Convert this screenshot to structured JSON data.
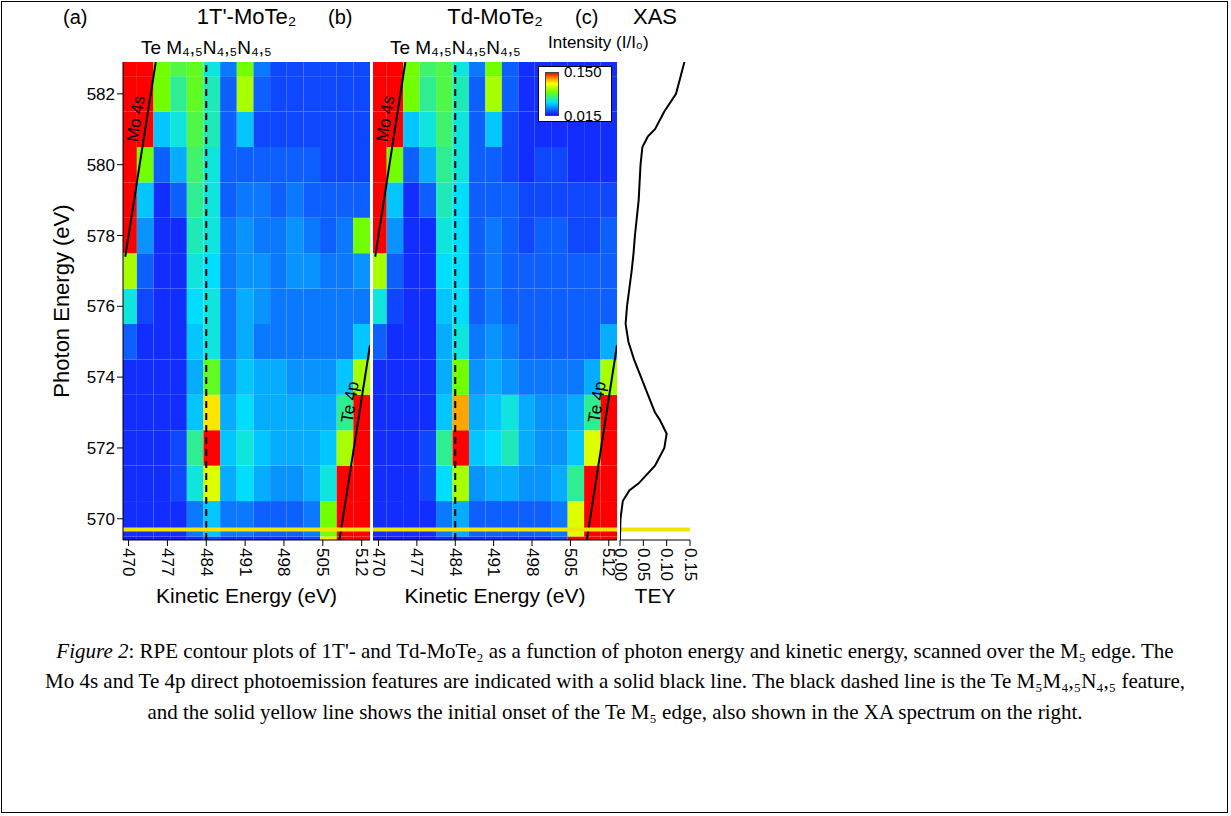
{
  "chart_data": [
    {
      "type": "heatmap",
      "panel": "(a)",
      "title": "1T'-MoTe₂",
      "x_label": "Kinetic Energy (eV)",
      "y_label": "Photon Energy (eV)",
      "x": [
        470,
        473,
        476,
        479,
        482,
        485,
        488,
        491,
        494,
        497,
        500,
        503,
        506,
        509,
        512
      ],
      "y": [
        569,
        570,
        571,
        572,
        573,
        574,
        575,
        576,
        577,
        578,
        579,
        580,
        581,
        582,
        583
      ],
      "cells": [
        [
          0.015,
          0.015,
          0.015,
          0.015,
          0.02,
          0.025,
          0.02,
          0.02,
          0.02,
          0.02,
          0.02,
          0.025,
          0.12,
          0.17,
          0.17
        ],
        [
          0.02,
          0.02,
          0.02,
          0.02,
          0.035,
          0.05,
          0.035,
          0.035,
          0.03,
          0.03,
          0.03,
          0.035,
          0.09,
          0.17,
          0.17
        ],
        [
          0.02,
          0.02,
          0.02,
          0.025,
          0.06,
          0.11,
          0.045,
          0.055,
          0.045,
          0.04,
          0.04,
          0.045,
          0.06,
          0.16,
          0.17
        ],
        [
          0.02,
          0.02,
          0.02,
          0.025,
          0.07,
          0.16,
          0.05,
          0.06,
          0.05,
          0.045,
          0.045,
          0.045,
          0.05,
          0.1,
          0.17
        ],
        [
          0.02,
          0.02,
          0.02,
          0.02,
          0.05,
          0.12,
          0.045,
          0.055,
          0.045,
          0.045,
          0.045,
          0.045,
          0.045,
          0.07,
          0.17
        ],
        [
          0.02,
          0.02,
          0.02,
          0.02,
          0.045,
          0.085,
          0.04,
          0.05,
          0.045,
          0.045,
          0.04,
          0.04,
          0.04,
          0.05,
          0.1
        ],
        [
          0.03,
          0.02,
          0.02,
          0.02,
          0.05,
          0.06,
          0.035,
          0.045,
          0.035,
          0.035,
          0.035,
          0.035,
          0.035,
          0.035,
          0.05
        ],
        [
          0.06,
          0.025,
          0.02,
          0.02,
          0.055,
          0.06,
          0.035,
          0.045,
          0.04,
          0.035,
          0.035,
          0.035,
          0.035,
          0.035,
          0.035
        ],
        [
          0.1,
          0.03,
          0.02,
          0.02,
          0.06,
          0.055,
          0.035,
          0.04,
          0.04,
          0.035,
          0.04,
          0.04,
          0.035,
          0.035,
          0.04
        ],
        [
          0.15,
          0.04,
          0.02,
          0.02,
          0.065,
          0.06,
          0.035,
          0.04,
          0.035,
          0.035,
          0.04,
          0.035,
          0.03,
          0.035,
          0.09
        ],
        [
          0.16,
          0.05,
          0.02,
          0.03,
          0.07,
          0.06,
          0.03,
          0.035,
          0.035,
          0.03,
          0.035,
          0.03,
          0.03,
          0.03,
          0.03
        ],
        [
          0.17,
          0.09,
          0.03,
          0.045,
          0.075,
          0.06,
          0.03,
          0.03,
          0.03,
          0.03,
          0.03,
          0.03,
          0.025,
          0.025,
          0.025
        ],
        [
          0.17,
          0.15,
          0.05,
          0.06,
          0.08,
          0.065,
          0.03,
          0.05,
          0.025,
          0.025,
          0.025,
          0.025,
          0.025,
          0.025,
          0.025
        ],
        [
          0.17,
          0.17,
          0.09,
          0.07,
          0.085,
          0.065,
          0.03,
          0.1,
          0.03,
          0.025,
          0.025,
          0.025,
          0.025,
          0.025,
          0.025
        ],
        [
          0.17,
          0.17,
          0.09,
          0.08,
          0.085,
          0.06,
          0.035,
          0.09,
          0.035,
          0.025,
          0.025,
          0.025,
          0.025,
          0.025,
          0.025
        ]
      ],
      "xlim": [
        469,
        513.5
      ],
      "xticks": [
        470,
        477,
        484,
        491,
        498,
        505,
        512
      ],
      "ylim": [
        569.4,
        582.9
      ],
      "yticks": [
        570,
        572,
        574,
        576,
        578,
        580,
        582
      ],
      "annotations": [
        {
          "text": "Mo 4s",
          "x": [
            469.4,
            474.9
          ],
          "y": [
            577.4,
            582.9
          ]
        },
        {
          "text": "Te 4p",
          "x": [
            508,
            513.5
          ],
          "y": [
            569.4,
            574.9
          ]
        }
      ],
      "feature": {
        "label": "Te M₄,₅N₄,₅N₄,₅",
        "x": 484
      },
      "onset": 569.7
    },
    {
      "type": "heatmap",
      "panel": "(b)",
      "title": "Td-MoTe₂",
      "x_label": "Kinetic Energy (eV)",
      "tick_labels": "x",
      "x": [
        470,
        473,
        476,
        479,
        482,
        485,
        488,
        491,
        494,
        497,
        500,
        503,
        506,
        509,
        512
      ],
      "y": [
        569,
        570,
        571,
        572,
        573,
        574,
        575,
        576,
        577,
        578,
        579,
        580,
        581,
        582,
        583
      ],
      "cells": [
        [
          0.015,
          0.015,
          0.015,
          0.015,
          0.02,
          0.02,
          0.02,
          0.02,
          0.02,
          0.02,
          0.02,
          0.025,
          0.15,
          0.17,
          0.17
        ],
        [
          0.02,
          0.02,
          0.02,
          0.02,
          0.035,
          0.045,
          0.03,
          0.03,
          0.03,
          0.03,
          0.03,
          0.035,
          0.11,
          0.17,
          0.17
        ],
        [
          0.02,
          0.02,
          0.02,
          0.025,
          0.055,
          0.1,
          0.04,
          0.045,
          0.045,
          0.04,
          0.04,
          0.045,
          0.07,
          0.17,
          0.17
        ],
        [
          0.02,
          0.02,
          0.02,
          0.025,
          0.07,
          0.17,
          0.05,
          0.055,
          0.065,
          0.045,
          0.04,
          0.04,
          0.05,
          0.11,
          0.17
        ],
        [
          0.02,
          0.02,
          0.02,
          0.02,
          0.05,
          0.13,
          0.045,
          0.05,
          0.06,
          0.045,
          0.04,
          0.04,
          0.045,
          0.07,
          0.17
        ],
        [
          0.02,
          0.02,
          0.02,
          0.02,
          0.045,
          0.09,
          0.04,
          0.045,
          0.04,
          0.035,
          0.035,
          0.035,
          0.035,
          0.045,
          0.1
        ],
        [
          0.03,
          0.02,
          0.02,
          0.02,
          0.045,
          0.06,
          0.035,
          0.04,
          0.035,
          0.03,
          0.03,
          0.03,
          0.03,
          0.03,
          0.045
        ],
        [
          0.06,
          0.025,
          0.02,
          0.02,
          0.05,
          0.055,
          0.03,
          0.035,
          0.03,
          0.03,
          0.03,
          0.03,
          0.03,
          0.03,
          0.03
        ],
        [
          0.1,
          0.03,
          0.02,
          0.02,
          0.055,
          0.055,
          0.03,
          0.035,
          0.03,
          0.03,
          0.03,
          0.03,
          0.03,
          0.03,
          0.03
        ],
        [
          0.15,
          0.04,
          0.02,
          0.02,
          0.06,
          0.055,
          0.03,
          0.035,
          0.03,
          0.025,
          0.03,
          0.03,
          0.025,
          0.025,
          0.03
        ],
        [
          0.16,
          0.05,
          0.02,
          0.03,
          0.065,
          0.055,
          0.03,
          0.03,
          0.03,
          0.025,
          0.025,
          0.025,
          0.025,
          0.025,
          0.025
        ],
        [
          0.17,
          0.09,
          0.03,
          0.045,
          0.07,
          0.06,
          0.03,
          0.03,
          0.025,
          0.02,
          0.025,
          0.025,
          0.02,
          0.02,
          0.02
        ],
        [
          0.17,
          0.15,
          0.05,
          0.06,
          0.075,
          0.06,
          0.03,
          0.05,
          0.025,
          0.02,
          0.02,
          0.02,
          0.02,
          0.02,
          0.02
        ],
        [
          0.17,
          0.17,
          0.09,
          0.07,
          0.08,
          0.065,
          0.03,
          0.1,
          0.03,
          0.02,
          0.02,
          0.02,
          0.02,
          0.02,
          0.02
        ],
        [
          0.17,
          0.17,
          0.09,
          0.075,
          0.08,
          0.06,
          0.035,
          0.09,
          0.03,
          0.02,
          0.02,
          0.02,
          0.02,
          0.02,
          0.02
        ]
      ],
      "xlim": [
        469,
        513.5
      ],
      "xticks": [
        470,
        477,
        484,
        491,
        498,
        505,
        512
      ],
      "ylim": [
        569.4,
        582.9
      ],
      "annotations": [
        {
          "text": "Mo 4s",
          "x": [
            469.4,
            474.9
          ],
          "y": [
            577.4,
            582.9
          ]
        },
        {
          "text": "Te 4p",
          "x": [
            508,
            513.5
          ],
          "y": [
            569.4,
            574.9
          ]
        }
      ],
      "feature": {
        "label": "Te M₄,₅N₄,₅N₄,₅",
        "x": 484
      },
      "onset": 569.7,
      "colorbar": {
        "label": "Intensity (I/I₀)",
        "range": [
          0.015,
          0.15
        ],
        "ticks": [
          {
            "value": 0.15,
            "label": "0.150"
          },
          0.015
        ]
      }
    },
    {
      "type": "line",
      "panel": "(c)",
      "title": "XAS",
      "x_label": "TEY",
      "tick_labels": "x",
      "x": [
        0,
        0,
        0.001,
        0.006,
        0.02,
        0.04,
        0.075,
        0.095,
        0.1,
        0.085,
        0.075,
        0.06,
        0.045,
        0.03,
        0.018,
        0.012,
        0.015,
        0.02,
        0.025,
        0.029,
        0.032,
        0.036,
        0.04,
        0.042,
        0.044,
        0.048,
        0.06,
        0.075,
        0.095,
        0.12,
        0.13,
        0.14
      ],
      "y": [
        569,
        569.5,
        570,
        570.5,
        570.8,
        571,
        571.5,
        572,
        572.4,
        572.8,
        573,
        573.5,
        574,
        574.5,
        575,
        575.5,
        576,
        576.5,
        577,
        577.5,
        578,
        578.5,
        579,
        579.5,
        580,
        580.5,
        580.8,
        581,
        581.5,
        582,
        582.5,
        583
      ],
      "xlim": [
        0,
        0.15
      ],
      "xticks": [
        {
          "value": 0,
          "label": "0.00"
        },
        {
          "value": 0.05,
          "label": "0.05"
        },
        {
          "value": 0.1,
          "label": "0.10"
        },
        {
          "value": 0.15,
          "label": "0.15"
        }
      ],
      "ylim": [
        569.4,
        582.9
      ],
      "onset": 569.7
    }
  ],
  "caption": {
    "label": "Figure 2",
    "text": ": RPE contour plots of 1T'- and Td-MoTe₂ as a function of photon energy and kinetic energy, scanned over the M₅ edge. The Mo 4s and Te 4p direct photoemission features are indicated with a solid black line. The black dashed line is the Te M₅M₄,₅N₄,₅ feature, and the solid yellow line shows the initial onset of the Te M₅ edge, also shown in the XA spectrum on the right."
  }
}
